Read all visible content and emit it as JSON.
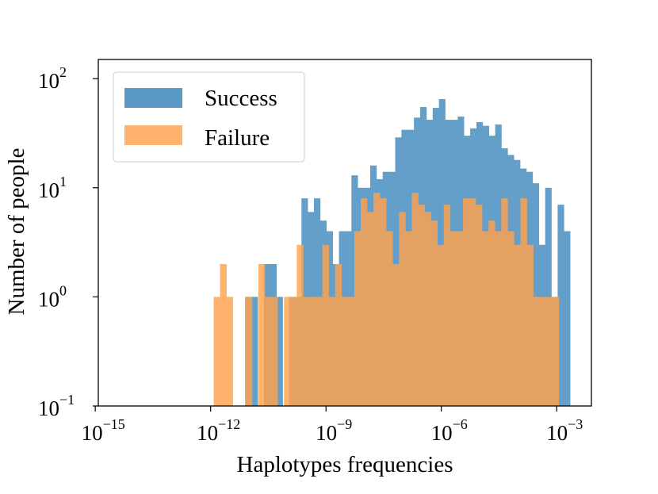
{
  "chart_data": {
    "type": "bar",
    "xlabel": "Haplotypes frequencies",
    "ylabel": "Number of people",
    "x_scale": "log",
    "y_scale": "log",
    "xlim": [
      1.2e-15,
      0.008
    ],
    "ylim": [
      0.1,
      150
    ],
    "x_ticks": [
      {
        "value": 1e-15,
        "base": "10",
        "exp": "−15"
      },
      {
        "value": 1e-12,
        "base": "10",
        "exp": "−12"
      },
      {
        "value": 1e-09,
        "base": "10",
        "exp": "−9"
      },
      {
        "value": 1e-06,
        "base": "10",
        "exp": "−6"
      },
      {
        "value": 0.001,
        "base": "10",
        "exp": "−3"
      }
    ],
    "y_ticks": [
      {
        "value": 0.1,
        "base": "10",
        "exp": "−1"
      },
      {
        "value": 1,
        "base": "10",
        "exp": "0"
      },
      {
        "value": 10,
        "base": "10",
        "exp": "1"
      },
      {
        "value": 100,
        "base": "10",
        "exp": "2"
      }
    ],
    "grid": false,
    "legend_position": "top-left",
    "series": [
      {
        "name": "Success",
        "color": "#5c9ac6",
        "log10_bin_start": -11.1,
        "log10_bin_width": 0.1625,
        "values": [
          1,
          1,
          0,
          2,
          2,
          1,
          0,
          1,
          1,
          8,
          6,
          8,
          5,
          4,
          2,
          4,
          4,
          13,
          10,
          10,
          16,
          12,
          14,
          14,
          29,
          34,
          34,
          44,
          55,
          42,
          54,
          65,
          42,
          42,
          45,
          30,
          35,
          40,
          37,
          30,
          38,
          23,
          20,
          18,
          15,
          14,
          11,
          3,
          10,
          1,
          7,
          4
        ]
      },
      {
        "name": "Failure",
        "color": "#ffa24d",
        "log10_bin_start": -11.92,
        "log10_bin_width": 0.1662,
        "values": [
          1,
          2,
          1,
          0,
          0,
          1,
          0,
          2,
          1,
          1,
          0,
          1,
          1,
          3,
          1,
          1,
          1,
          3,
          1,
          2,
          1,
          1,
          4,
          8,
          6,
          9,
          8,
          4,
          2,
          6,
          4,
          9,
          7,
          6,
          5,
          3,
          7,
          4,
          4,
          8,
          8,
          7,
          4,
          5,
          4,
          8,
          4,
          3,
          8,
          3,
          1,
          1,
          1,
          1,
          0,
          0,
          0,
          0,
          0,
          0,
          0
        ]
      }
    ]
  }
}
